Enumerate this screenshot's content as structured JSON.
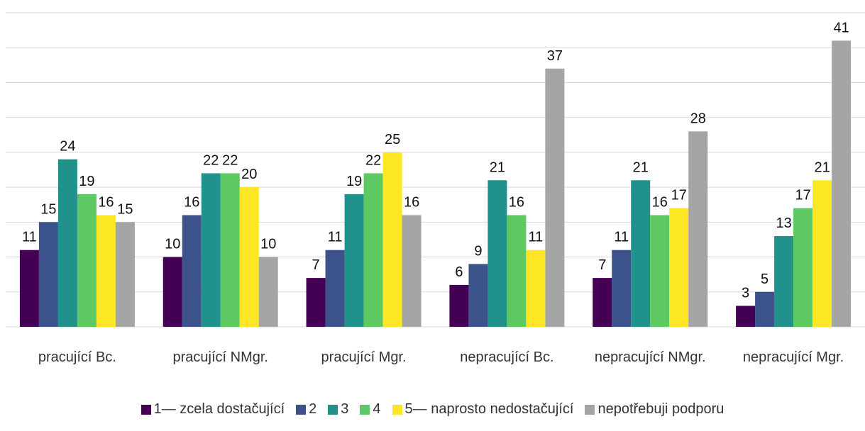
{
  "chart_data": {
    "type": "bar",
    "categories": [
      "pracující Bc.",
      "pracující NMgr.",
      "pracující Mgr.",
      "nepracující Bc.",
      "nepracující NMgr.",
      "nepracující Mgr."
    ],
    "series": [
      {
        "name": "1— zcela dostačující",
        "color": "#440154",
        "values": [
          11,
          10,
          7,
          6,
          7,
          3
        ]
      },
      {
        "name": "2",
        "color": "#3b528b",
        "values": [
          15,
          16,
          11,
          9,
          11,
          5
        ]
      },
      {
        "name": "3",
        "color": "#21918c",
        "values": [
          24,
          22,
          19,
          21,
          21,
          13
        ]
      },
      {
        "name": "4",
        "color": "#5ec962",
        "values": [
          19,
          22,
          22,
          16,
          16,
          17
        ]
      },
      {
        "name": "5— naprosto nedostačující",
        "color": "#fde725",
        "values": [
          16,
          20,
          25,
          11,
          17,
          21
        ]
      },
      {
        "name": "nepotřebuji podporu",
        "color": "#a5a5a5",
        "values": [
          15,
          10,
          16,
          37,
          28,
          41
        ]
      }
    ],
    "ylim": [
      0,
      45
    ],
    "yticks": [
      0,
      5,
      10,
      15,
      20,
      25,
      30,
      35,
      40,
      45
    ],
    "grid": true,
    "legend": "bottom"
  }
}
